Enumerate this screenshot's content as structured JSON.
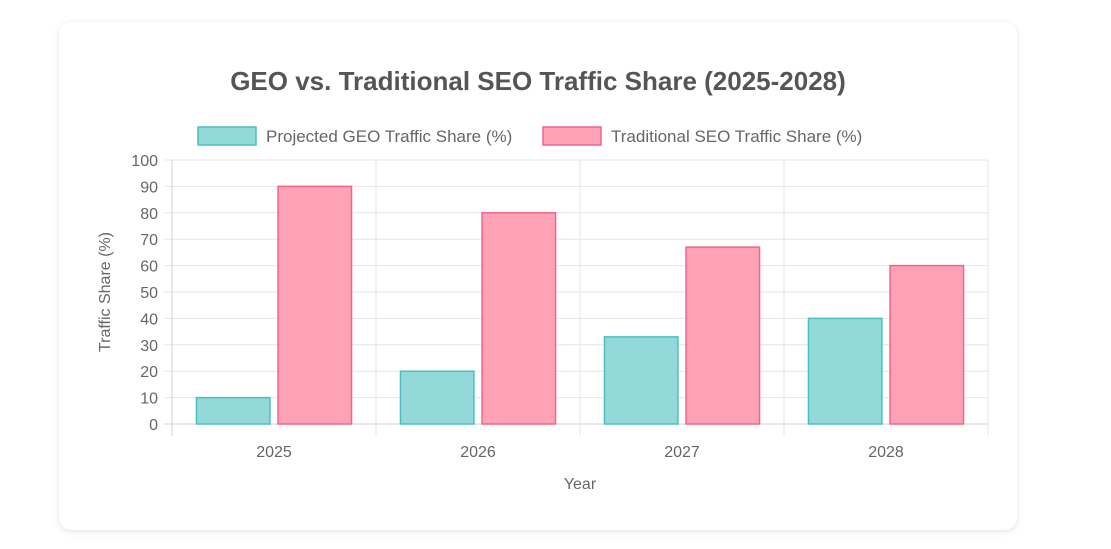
{
  "chart_data": {
    "type": "bar",
    "title": "GEO vs. Traditional SEO Traffic Share (2025-2028)",
    "xlabel": "Year",
    "ylabel": "Traffic Share (%)",
    "categories": [
      "2025",
      "2026",
      "2027",
      "2028"
    ],
    "ylim": [
      0,
      100
    ],
    "yticks": [
      "0",
      "10",
      "20",
      "30",
      "40",
      "50",
      "60",
      "70",
      "80",
      "90",
      "100"
    ],
    "grid": true,
    "legend_position": "top",
    "series": [
      {
        "name": "Projected GEO Traffic Share (%)",
        "values": [
          10,
          20,
          33,
          40
        ],
        "fill": "#93d9d9",
        "stroke": "#4bbfbf"
      },
      {
        "name": "Traditional SEO Traffic Share (%)",
        "values": [
          90,
          80,
          67,
          60
        ],
        "fill": "#ffa2b5",
        "stroke": "#f0648a"
      }
    ]
  }
}
